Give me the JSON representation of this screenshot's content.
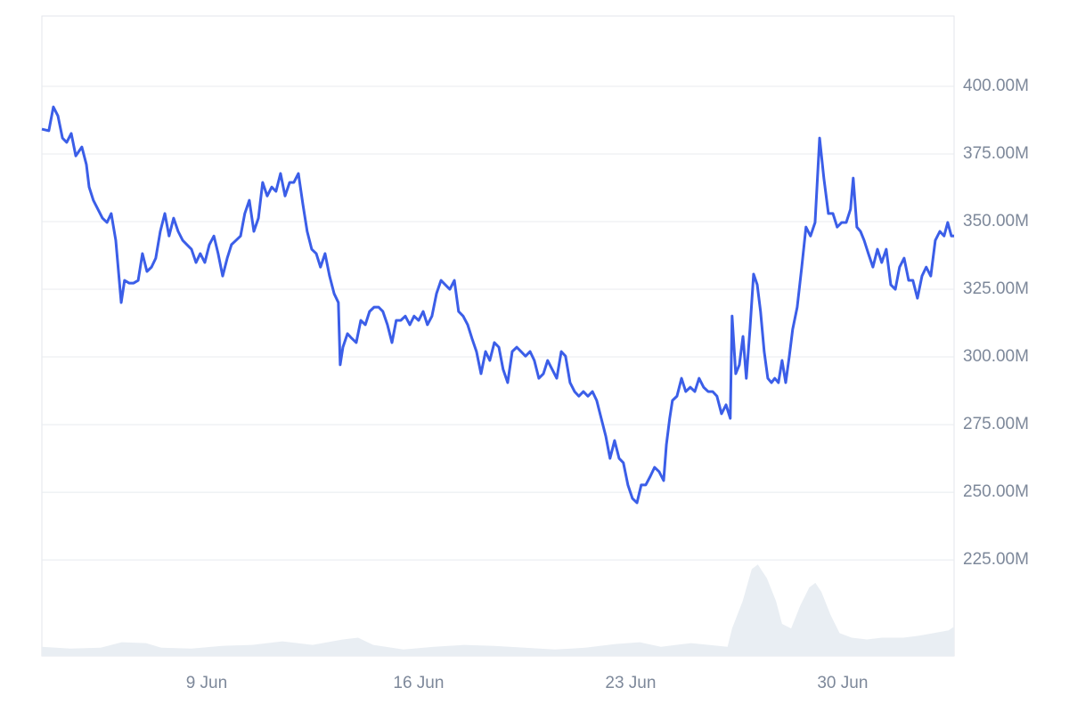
{
  "chart_data": {
    "type": "line",
    "x": [
      3.56,
      3.79,
      3.94,
      4.09,
      4.24,
      4.38,
      4.53,
      4.68,
      4.88,
      5.03,
      5.12,
      5.26,
      5.41,
      5.56,
      5.71,
      5.85,
      6.0,
      6.18,
      6.29,
      6.44,
      6.59,
      6.74,
      6.88,
      7.03,
      7.18,
      7.32,
      7.47,
      7.62,
      7.76,
      7.91,
      8.06,
      8.21,
      8.35,
      8.5,
      8.65,
      8.79,
      8.94,
      9.09,
      9.24,
      9.38,
      9.53,
      9.68,
      9.82,
      9.97,
      10.12,
      10.26,
      10.41,
      10.56,
      10.71,
      10.85,
      11.0,
      11.15,
      11.29,
      11.44,
      11.59,
      11.74,
      11.88,
      12.03,
      12.18,
      12.32,
      12.47,
      12.62,
      12.76,
      12.91,
      13.06,
      13.21,
      13.35,
      13.41,
      13.5,
      13.65,
      13.79,
      13.94,
      14.09,
      14.24,
      14.38,
      14.53,
      14.68,
      14.82,
      14.97,
      15.12,
      15.26,
      15.41,
      15.56,
      15.71,
      15.85,
      16.0,
      16.15,
      16.29,
      16.44,
      16.59,
      16.74,
      16.88,
      17.03,
      17.18,
      17.32,
      17.47,
      17.62,
      17.76,
      17.91,
      18.06,
      18.21,
      18.35,
      18.5,
      18.65,
      18.79,
      18.94,
      19.09,
      19.24,
      19.38,
      19.53,
      19.68,
      19.82,
      19.97,
      20.12,
      20.26,
      20.41,
      20.56,
      20.71,
      20.85,
      21.0,
      21.15,
      21.29,
      21.44,
      21.59,
      21.74,
      21.88,
      22.03,
      22.18,
      22.32,
      22.47,
      22.62,
      22.76,
      22.91,
      23.06,
      23.21,
      23.35,
      23.5,
      23.65,
      23.79,
      23.94,
      24.09,
      24.18,
      24.29,
      24.38,
      24.53,
      24.68,
      24.82,
      24.97,
      25.12,
      25.26,
      25.41,
      25.56,
      25.71,
      25.85,
      26.0,
      26.15,
      26.29,
      26.35,
      26.47,
      26.59,
      26.71,
      26.82,
      26.94,
      27.06,
      27.18,
      27.29,
      27.41,
      27.53,
      27.65,
      27.76,
      27.88,
      28.0,
      28.12,
      28.24,
      28.35,
      28.5,
      28.65,
      28.79,
      28.94,
      29.09,
      29.24,
      29.38,
      29.53,
      29.68,
      29.82,
      29.97,
      30.12,
      30.26,
      30.35,
      30.47,
      30.59,
      30.71,
      30.85,
      31.0,
      31.15,
      31.29,
      31.44,
      31.59,
      31.74,
      31.88,
      32.03,
      32.18,
      32.32,
      32.47,
      32.62,
      32.76,
      32.91,
      33.06,
      33.21,
      33.35,
      33.47,
      33.59,
      33.68
    ],
    "series": [
      {
        "color": "#3b5ee8",
        "values": [
          384.2,
          383.6,
          392.4,
          389.1,
          380.9,
          379.3,
          382.6,
          374.3,
          377.6,
          371.1,
          362.8,
          357.9,
          354.6,
          351.3,
          349.7,
          353.0,
          343.1,
          320.1,
          328.3,
          327.3,
          327.3,
          328.3,
          338.2,
          331.6,
          333.2,
          336.5,
          346.4,
          353.0,
          344.7,
          351.3,
          346.4,
          343.1,
          341.5,
          339.8,
          334.9,
          338.2,
          334.9,
          341.5,
          344.7,
          338.2,
          329.9,
          336.5,
          341.5,
          343.1,
          344.7,
          353.0,
          357.9,
          346.4,
          351.3,
          364.5,
          359.5,
          362.8,
          361.2,
          367.8,
          359.5,
          364.5,
          364.5,
          367.8,
          356.3,
          346.4,
          339.8,
          338.2,
          333.2,
          338.2,
          329.9,
          323.4,
          320.1,
          297.1,
          303.6,
          308.6,
          306.9,
          305.3,
          313.5,
          311.9,
          316.8,
          318.4,
          318.4,
          316.8,
          311.9,
          305.3,
          313.5,
          313.5,
          315.1,
          311.9,
          315.1,
          313.5,
          316.8,
          311.9,
          315.1,
          323.4,
          328.3,
          326.7,
          325.0,
          328.3,
          316.8,
          315.1,
          311.9,
          306.9,
          302.0,
          293.8,
          302.0,
          298.7,
          305.3,
          303.6,
          295.4,
          290.5,
          302.0,
          303.6,
          302.0,
          300.3,
          302.0,
          298.7,
          292.1,
          293.8,
          298.7,
          295.4,
          292.1,
          302.0,
          300.3,
          290.5,
          287.2,
          285.5,
          287.2,
          285.5,
          287.2,
          283.9,
          277.3,
          270.7,
          262.5,
          269.1,
          262.5,
          260.9,
          252.7,
          247.7,
          246.1,
          252.7,
          252.7,
          255.9,
          259.2,
          257.6,
          254.3,
          267.5,
          277.3,
          283.9,
          285.5,
          292.1,
          287.2,
          288.8,
          287.2,
          292.1,
          288.8,
          287.2,
          287.2,
          285.5,
          279.0,
          282.3,
          277.3,
          315.1,
          293.8,
          297.1,
          307.6,
          292.1,
          310.2,
          330.6,
          326.7,
          316.8,
          302.0,
          292.1,
          290.5,
          292.1,
          290.5,
          298.7,
          290.5,
          300.3,
          310.2,
          318.4,
          333.2,
          348.0,
          344.7,
          349.7,
          380.9,
          366.1,
          353.0,
          353.0,
          348.0,
          349.7,
          349.7,
          354.6,
          366.1,
          348.0,
          346.4,
          343.1,
          338.2,
          333.2,
          339.8,
          334.9,
          339.8,
          326.7,
          325.0,
          333.2,
          336.5,
          328.3,
          328.3,
          321.7,
          329.9,
          333.2,
          329.9,
          343.1,
          346.4,
          344.7,
          349.7,
          344.7,
          344.7
        ]
      }
    ],
    "volume": {
      "type": "area",
      "color": "#e9eef3",
      "x": [
        3.56,
        4.5,
        5.5,
        6.2,
        7,
        7.5,
        8.5,
        9.5,
        10.5,
        11.5,
        12.5,
        13.5,
        14,
        14.5,
        15.5,
        16.5,
        17.5,
        18.5,
        19.5,
        20.5,
        21.5,
        22.5,
        23.3,
        24,
        25,
        26.2,
        26.35,
        26.7,
        27,
        27.2,
        27.5,
        27.8,
        28,
        28.3,
        28.6,
        28.9,
        29.1,
        29.3,
        29.6,
        29.9,
        30.3,
        30.8,
        31.3,
        32,
        32.5,
        33,
        33.5,
        33.68
      ],
      "values": [
        10,
        8,
        9,
        15,
        14,
        9,
        8,
        11,
        12,
        16,
        12,
        18,
        20,
        12,
        7,
        10,
        12,
        11,
        9,
        7,
        9,
        13,
        15,
        10,
        14,
        10,
        30,
        60,
        95,
        100,
        85,
        60,
        35,
        30,
        55,
        75,
        80,
        70,
        45,
        25,
        20,
        18,
        20,
        20,
        22,
        25,
        28,
        32
      ],
      "ylim": [
        0,
        700
      ]
    },
    "xlim": [
      3.56,
      33.68
    ],
    "xticks": [
      {
        "value": 9,
        "label": "9 Jun"
      },
      {
        "value": 16,
        "label": "16 Jun"
      },
      {
        "value": 23,
        "label": "23 Jun"
      },
      {
        "value": 30,
        "label": "30 Jun"
      }
    ],
    "ylim": [
      189.5,
      426
    ],
    "yticks": [
      {
        "value": 225,
        "label": "225.00M"
      },
      {
        "value": 250,
        "label": "250.00M"
      },
      {
        "value": 275,
        "label": "275.00M"
      },
      {
        "value": 300,
        "label": "300.00M"
      },
      {
        "value": 325,
        "label": "325.00M"
      },
      {
        "value": 350,
        "label": "350.00M"
      },
      {
        "value": 375,
        "label": "375.00M"
      },
      {
        "value": 400,
        "label": "400.00M"
      }
    ],
    "grid": true
  }
}
